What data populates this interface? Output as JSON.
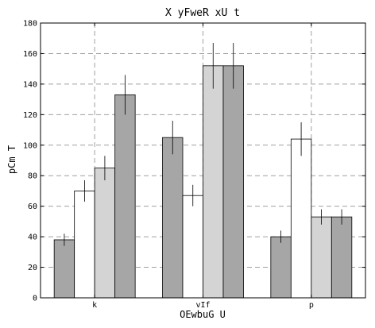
{
  "chart_data": {
    "type": "bar",
    "title": "X yFweR xU t",
    "xlabel": "OEwbuG U",
    "ylabel": "pCm  T",
    "categories": [
      "k",
      "vIf",
      "p"
    ],
    "ylim": [
      0,
      180
    ],
    "yticks": [
      0,
      20,
      40,
      60,
      80,
      100,
      120,
      140,
      160,
      180
    ],
    "grid": true,
    "series": [
      {
        "values": [
          38,
          105,
          40
        ],
        "errors": [
          4,
          11,
          4
        ],
        "color": "#a6a6a6"
      },
      {
        "values": [
          70,
          67,
          104
        ],
        "errors": [
          7,
          7,
          11
        ],
        "color": "#ffffff"
      },
      {
        "values": [
          85,
          152,
          53
        ],
        "errors": [
          8,
          15,
          5
        ],
        "color": "#d4d4d4"
      },
      {
        "values": [
          133,
          152,
          53
        ],
        "errors": [
          13,
          15,
          5
        ],
        "color": "#a6a6a6"
      }
    ]
  }
}
